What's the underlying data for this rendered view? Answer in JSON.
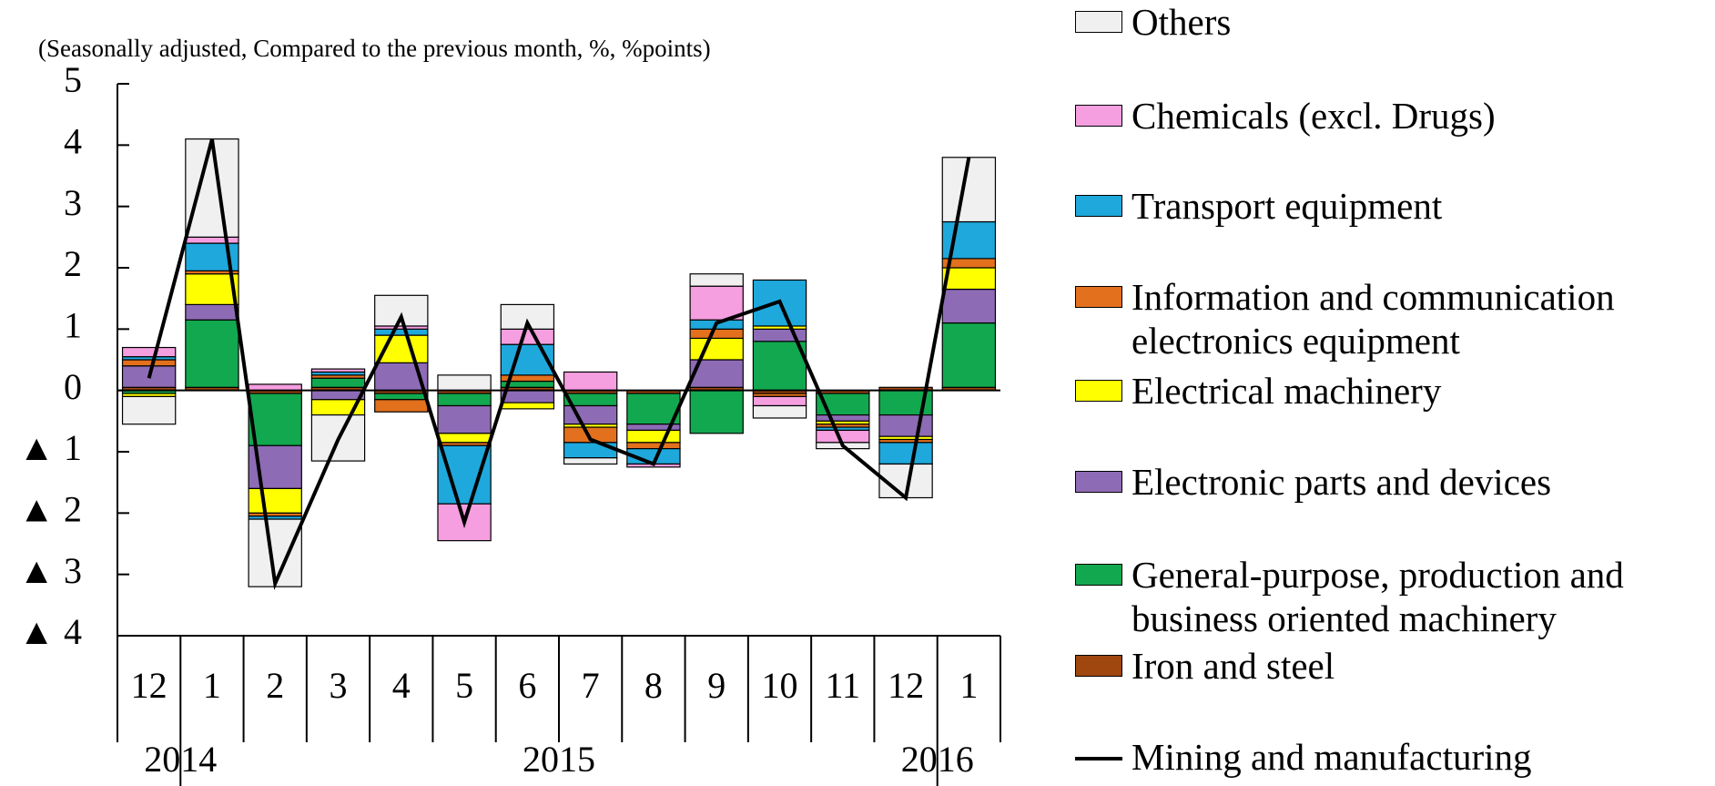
{
  "chart_data": {
    "type": "stacked_bar_line",
    "subtitle": "(Seasonally adjusted, Compared to the previous month, %, %points)",
    "categories": [
      "12",
      "1",
      "2",
      "3",
      "4",
      "5",
      "6",
      "7",
      "8",
      "9",
      "10",
      "11",
      "12",
      "1"
    ],
    "years": [
      "2014",
      "2015",
      "2016"
    ],
    "ylim": [
      -4,
      5
    ],
    "yticks": [
      {
        "value": -4,
        "label": "▲ 4"
      },
      {
        "value": -3,
        "label": "▲ 3"
      },
      {
        "value": -2,
        "label": "▲ 2"
      },
      {
        "value": -1,
        "label": "▲ 1"
      },
      0,
      1,
      2,
      3,
      4,
      5
    ],
    "series": [
      {
        "name": "Iron and steel",
        "color": "#a0460f",
        "values": [
          0.05,
          0.05,
          -0.05,
          0.05,
          -0.05,
          -0.05,
          0.05,
          -0.05,
          -0.05,
          0.05,
          -0.05,
          -0.05,
          0.05,
          0.05
        ]
      },
      {
        "name": "General-purpose, production and business oriented machinery",
        "color": "#12a84f",
        "values": [
          -0.05,
          1.1,
          -0.85,
          0.15,
          -0.1,
          -0.2,
          0.1,
          -0.2,
          -0.5,
          -0.7,
          0.8,
          -0.35,
          -0.4,
          1.05
        ]
      },
      {
        "name": "Electronic parts and devices",
        "color": "#8e6bb5",
        "values": [
          0.35,
          0.25,
          -0.7,
          -0.15,
          0.45,
          -0.45,
          -0.2,
          -0.3,
          -0.1,
          0.45,
          0.2,
          -0.1,
          -0.35,
          0.55
        ]
      },
      {
        "name": "Electrical machinery",
        "color": "#ffff00",
        "values": [
          -0.05,
          0.5,
          -0.4,
          -0.25,
          0.45,
          -0.15,
          -0.1,
          -0.05,
          -0.2,
          0.35,
          0.05,
          -0.05,
          -0.05,
          0.35
        ]
      },
      {
        "name": "Information and communication electronics equipment",
        "color": "#e2701d",
        "values": [
          0.1,
          0.05,
          -0.05,
          0.05,
          -0.2,
          -0.05,
          0.1,
          -0.25,
          -0.1,
          0.15,
          -0.05,
          -0.05,
          -0.05,
          0.15
        ]
      },
      {
        "name": "Transport equipment",
        "color": "#1fa8dc",
        "values": [
          0.05,
          0.45,
          -0.05,
          0.05,
          0.1,
          -0.95,
          0.5,
          -0.25,
          -0.25,
          0.15,
          0.75,
          -0.05,
          -0.35,
          0.6
        ]
      },
      {
        "name": "Chemicals (excl. Drugs)",
        "color": "#f59ee0",
        "values": [
          0.15,
          0.1,
          0.1,
          0.05,
          0.05,
          -0.6,
          0.25,
          0.3,
          -0.05,
          0.55,
          -0.15,
          -0.2,
          0,
          0
        ]
      },
      {
        "name": "Others",
        "color": "#f0f0f0",
        "values": [
          -0.45,
          1.6,
          -1.1,
          -0.75,
          0.5,
          0.25,
          0.4,
          -0.1,
          0,
          0.2,
          -0.2,
          -0.1,
          -0.55,
          1.05
        ]
      }
    ],
    "line": {
      "name": "Mining and manufacturing",
      "color": "#000000",
      "values": [
        0.2,
        4.1,
        -3.15,
        -0.8,
        1.2,
        -2.15,
        1.1,
        -0.8,
        -1.2,
        1.1,
        1.45,
        -0.9,
        -1.75,
        3.8
      ]
    }
  }
}
